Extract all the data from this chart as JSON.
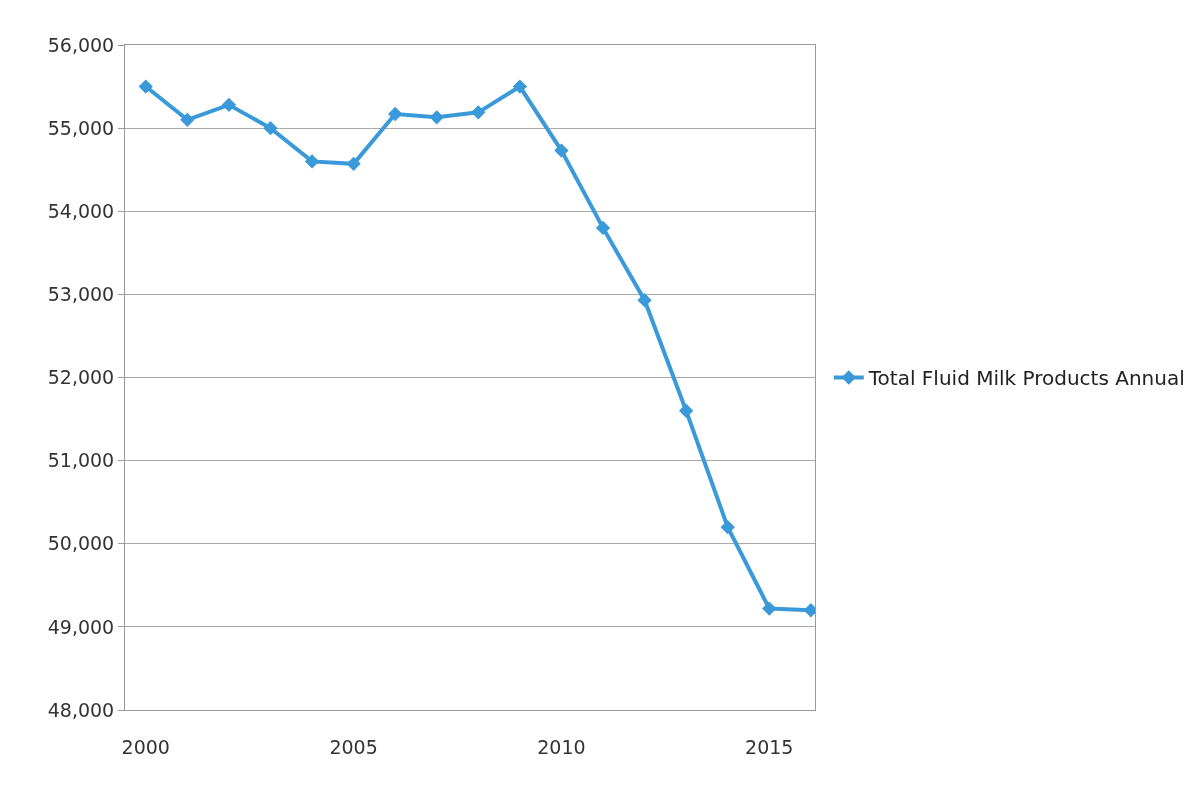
{
  "chart_data": {
    "type": "line",
    "x": [
      2000,
      2001,
      2002,
      2003,
      2004,
      2005,
      2006,
      2007,
      2008,
      2009,
      2010,
      2011,
      2012,
      2013,
      2014,
      2015,
      2016
    ],
    "series": [
      {
        "name": "Total Fluid Milk Products Annual",
        "color": "#3a9ad9",
        "values": [
          55500,
          55100,
          55280,
          55000,
          54600,
          54570,
          55170,
          55130,
          55190,
          55500,
          54730,
          53800,
          52930,
          51600,
          50200,
          49220,
          49200
        ]
      }
    ],
    "xlim": [
      1999.5,
      2016.1
    ],
    "xticks": [
      2000,
      2005,
      2010,
      2015
    ],
    "ylim": [
      48000,
      56000
    ],
    "yticks": [
      {
        "value": 48000,
        "label": "48,000"
      },
      {
        "value": 49000,
        "label": "49,000"
      },
      {
        "value": 50000,
        "label": "50,000"
      },
      {
        "value": 51000,
        "label": "51,000"
      },
      {
        "value": 52000,
        "label": "52,000"
      },
      {
        "value": 53000,
        "label": "53,000"
      },
      {
        "value": 54000,
        "label": "54,000"
      },
      {
        "value": 55000,
        "label": "55,000"
      },
      {
        "value": 56000,
        "label": "56,000"
      }
    ],
    "grid": "y",
    "legend": "right",
    "marker": "diamond",
    "line_style": "solid"
  }
}
